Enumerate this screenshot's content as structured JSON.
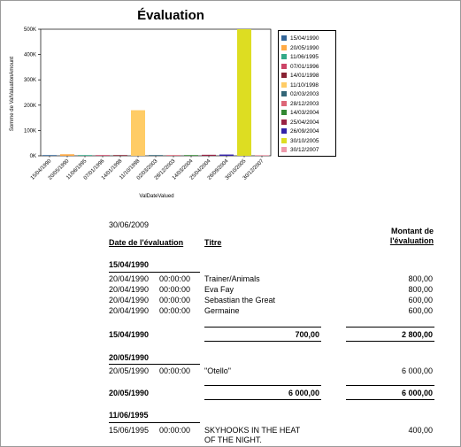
{
  "report": {
    "title": "Évaluation",
    "report_date": "30/06/2009",
    "col_headers": {
      "date": "Date de l'évaluation",
      "title": "Titre",
      "amount_line1": "Montant de",
      "amount_line2": "l'évaluation"
    },
    "groups": [
      {
        "date": "15/04/1990",
        "rows": [
          {
            "date": "20/04/1990",
            "time": "00:00:00",
            "title": "Trainer/Animals",
            "amount": "800,00"
          },
          {
            "date": "20/04/1990",
            "time": "00:00:00",
            "title": "Eva Fay",
            "amount": "800,00"
          },
          {
            "date": "20/04/1990",
            "time": "00:00:00",
            "title": "Sebastian the Great",
            "amount": "600,00"
          },
          {
            "date": "20/04/1990",
            "time": "00:00:00",
            "title": "Germaine",
            "amount": "600,00"
          }
        ],
        "avg": "700,00",
        "total": "2 800,00"
      },
      {
        "date": "20/05/1990",
        "rows": [
          {
            "date": "20/05/1990",
            "time": "00:00:00",
            "title": "\"Otello\"",
            "amount": "6 000,00"
          }
        ],
        "avg": "6 000,00",
        "total": "6 000,00"
      },
      {
        "date": "11/06/1995",
        "rows": [
          {
            "date": "15/06/1995",
            "time": "00:00:00",
            "title": "SKYHOOKS IN THE HEAT",
            "title_line2": "OF THE NIGHT.",
            "amount": "400,00"
          }
        ]
      }
    ]
  },
  "chart_data": {
    "type": "bar",
    "title": "Évaluation",
    "xlabel": "ValDateValued",
    "ylabel": "Somme de ValValuationAmount",
    "ylim": [
      0,
      500000
    ],
    "ytick_labels": [
      "0K",
      "100K",
      "200K",
      "300K",
      "400K",
      "500K"
    ],
    "yticks": [
      0,
      100000,
      200000,
      300000,
      400000,
      500000
    ],
    "grid": false,
    "legend_position": "right",
    "categories": [
      "15/04/1990",
      "20/05/1990",
      "11/06/1995",
      "07/01/1996",
      "14/01/1998",
      "11/10/1998",
      "02/03/2003",
      "28/12/2003",
      "14/03/2004",
      "25/04/2004",
      "26/09/2004",
      "30/10/2005",
      "30/12/2007"
    ],
    "values": [
      2800,
      6000,
      400,
      300,
      200,
      180000,
      300,
      500,
      400,
      4000,
      5000,
      500000,
      300
    ],
    "colors": [
      "#336699",
      "#ffaa44",
      "#33aa88",
      "#cc4466",
      "#882233",
      "#ffcc66",
      "#336677",
      "#dd6677",
      "#338833",
      "#992244",
      "#3322aa",
      "#dddd22",
      "#ee99aa"
    ],
    "tick_labels": [
      "15/04/1990",
      "20/05/1990",
      "11/06/1995",
      "07/01/1996",
      "14/01/1998",
      "11/10/1998",
      "02/03/2003",
      "28/12/2003",
      "14/03/2004",
      "25/04/2004",
      "26/09/2004",
      "30/10/2005",
      "30/12/2007"
    ]
  }
}
